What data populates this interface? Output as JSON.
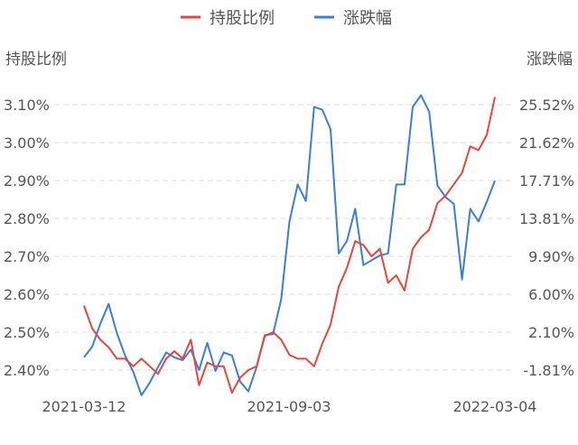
{
  "chart_data": {
    "type": "line",
    "legend": [
      {
        "name": "持股比例",
        "color": "#e8453c"
      },
      {
        "name": "涨跌幅",
        "color": "#3b7de0"
      }
    ],
    "left_axis": {
      "title": "持股比例",
      "ticks": [
        "3.10%",
        "3.00%",
        "2.90%",
        "2.80%",
        "2.70%",
        "2.60%",
        "2.50%",
        "2.40%"
      ],
      "tick_values": [
        3.1,
        3.0,
        2.9,
        2.8,
        2.7,
        2.6,
        2.5,
        2.4
      ]
    },
    "right_axis": {
      "title": "涨跌幅",
      "ticks": [
        "25.52%",
        "21.62%",
        "17.71%",
        "13.81%",
        "9.90%",
        "6.00%",
        "2.10%",
        "-1.81%"
      ],
      "tick_values": [
        25.52,
        21.62,
        17.71,
        13.81,
        9.9,
        6.0,
        2.1,
        -1.81
      ]
    },
    "x_labels": [
      "2021-03-12",
      "2021-09-03",
      "2022-03-04"
    ],
    "grid": true,
    "legend_position": "top",
    "series": [
      {
        "name": "持股比例",
        "axis": "left",
        "color": "#e8453c",
        "values": [
          2.57,
          2.51,
          2.48,
          2.46,
          2.43,
          2.43,
          2.41,
          2.43,
          2.41,
          2.39,
          2.43,
          2.45,
          2.43,
          2.48,
          2.36,
          2.42,
          2.41,
          2.41,
          2.34,
          2.38,
          2.4,
          2.41,
          2.49,
          2.5,
          2.48,
          2.44,
          2.43,
          2.43,
          2.41,
          2.47,
          2.52,
          2.62,
          2.67,
          2.74,
          2.73,
          2.7,
          2.72,
          2.63,
          2.65,
          2.61,
          2.72,
          2.75,
          2.77,
          2.84,
          2.86,
          2.89,
          2.92,
          2.99,
          2.98,
          3.02,
          3.12
        ]
      },
      {
        "name": "涨跌幅",
        "axis": "right",
        "values": [
          -0.5,
          0.6,
          3.0,
          5.0,
          2.0,
          -0.3,
          -2.0,
          -4.4,
          -3.1,
          -1.5,
          0.0,
          -0.5,
          -0.8,
          0.3,
          -1.8,
          1.0,
          -1.9,
          0.0,
          -0.3,
          -3.0,
          -4.0,
          -1.5,
          1.8,
          1.9,
          5.5,
          13.5,
          17.3,
          15.6,
          25.3,
          25.0,
          23.0,
          10.2,
          11.5,
          14.8,
          9.0,
          9.5,
          10.0,
          10.2,
          17.3,
          17.3,
          25.3,
          26.5,
          24.8,
          17.2,
          16.0,
          15.3,
          7.5,
          14.8,
          13.5,
          15.5,
          17.7
        ]
      }
    ]
  }
}
